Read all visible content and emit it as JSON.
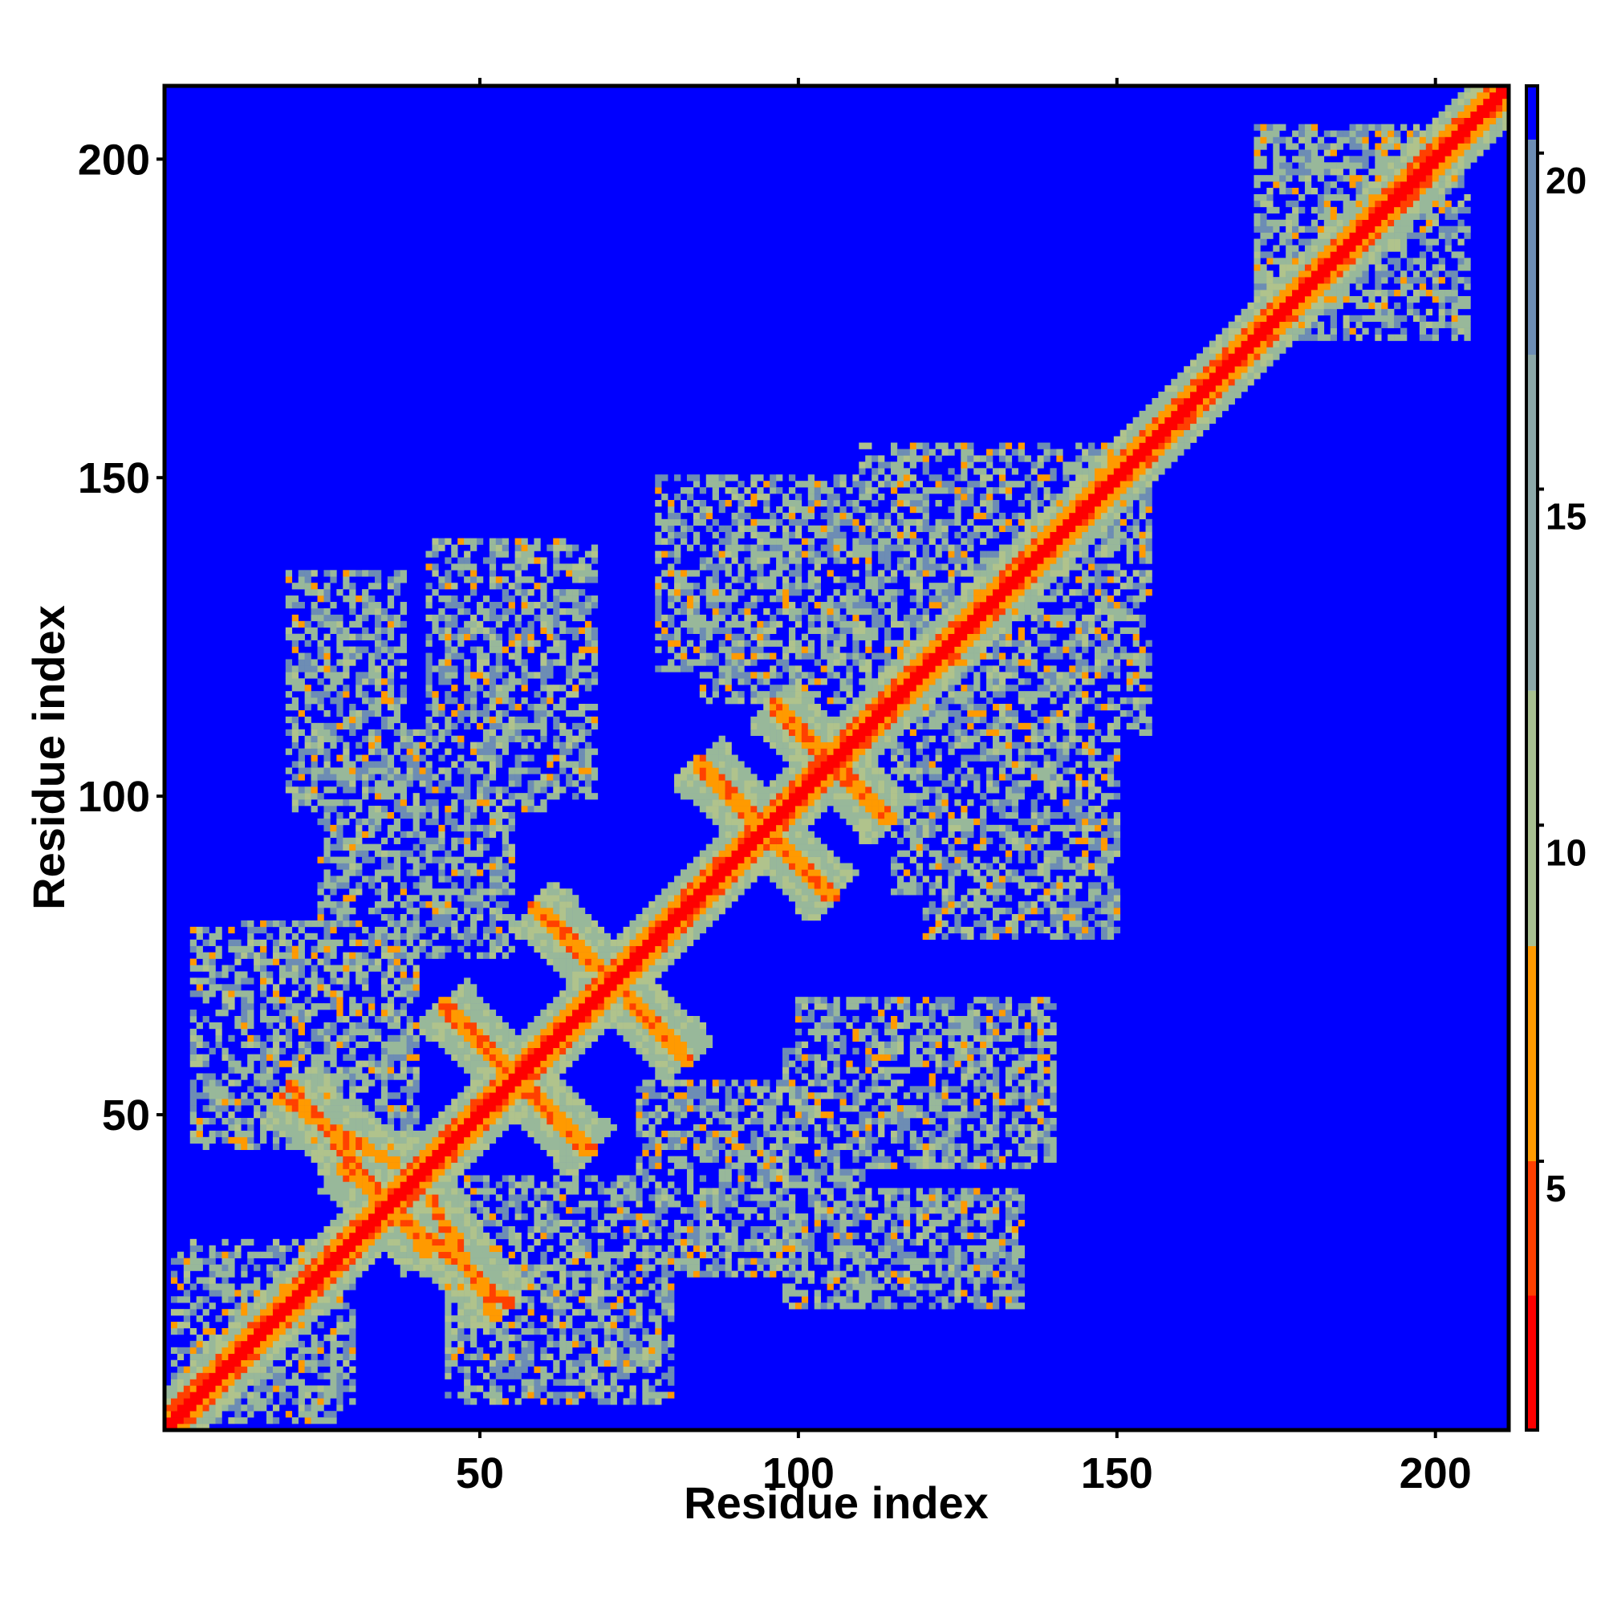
{
  "chart_data": {
    "type": "heatmap",
    "title": "",
    "xlabel": "Residue index",
    "ylabel": "Residue index",
    "xlim": [
      1,
      211
    ],
    "ylim": [
      1,
      211
    ],
    "x_ticks": [
      50,
      100,
      150,
      200
    ],
    "y_ticks": [
      50,
      100,
      150,
      200
    ],
    "x_tick_labels": [
      "50",
      "100",
      "150",
      "200"
    ],
    "y_tick_labels": [
      "50",
      "100",
      "150",
      "200"
    ],
    "colorbar": {
      "range": [
        1,
        21
      ],
      "ticks": [
        5,
        10,
        15,
        20
      ],
      "tick_labels": [
        "5",
        "10",
        "15",
        "20"
      ],
      "colors": [
        "#ff0000",
        "#ff8c00",
        "#a8c090",
        "#6f8fb0",
        "#0000ff"
      ]
    },
    "background_color": "#0000ff",
    "diagonal_band": {
      "from": 1,
      "to": 211
    },
    "features": [
      {
        "kind": "antidiagonal",
        "from": [
          20,
          55
        ],
        "to": [
          42,
          28
        ]
      },
      {
        "kind": "antidiagonal",
        "from": [
          44,
          67
        ],
        "to": [
          68,
          44
        ]
      },
      {
        "kind": "antidiagonal",
        "from": [
          58,
          83
        ],
        "to": [
          82,
          60
        ]
      },
      {
        "kind": "antidiagonal",
        "from": [
          42,
          37
        ],
        "to": [
          53,
          18
        ]
      },
      {
        "kind": "antidiagonal",
        "from": [
          84,
          105
        ],
        "to": [
          106,
          84
        ]
      },
      {
        "kind": "antidiagonal",
        "from": [
          96,
          115
        ],
        "to": [
          114,
          96
        ]
      },
      {
        "kind": "cluster",
        "x": [
          2,
          30
        ],
        "y": [
          5,
          28
        ]
      },
      {
        "kind": "cluster",
        "x": [
          10,
          40
        ],
        "y": [
          45,
          80
        ]
      },
      {
        "kind": "cluster",
        "x": [
          20,
          38
        ],
        "y": [
          98,
          135
        ]
      },
      {
        "kind": "cluster",
        "x": [
          42,
          60
        ],
        "y": [
          98,
          140
        ]
      },
      {
        "kind": "cluster",
        "x": [
          58,
          68
        ],
        "y": [
          100,
          118
        ]
      },
      {
        "kind": "cluster",
        "x": [
          45,
          80
        ],
        "y": [
          5,
          35
        ]
      },
      {
        "kind": "cluster",
        "x": [
          75,
          110
        ],
        "y": [
          25,
          55
        ]
      },
      {
        "kind": "cluster",
        "x": [
          100,
          135
        ],
        "y": [
          20,
          35
        ]
      },
      {
        "kind": "cluster",
        "x": [
          100,
          140
        ],
        "y": [
          45,
          68
        ]
      },
      {
        "kind": "cluster",
        "x": [
          78,
          118
        ],
        "y": [
          120,
          150
        ]
      },
      {
        "kind": "cluster",
        "x": [
          118,
          155
        ],
        "y": [
          110,
          150
        ]
      },
      {
        "kind": "cluster",
        "x": [
          115,
          150
        ],
        "y": [
          85,
          108
        ]
      },
      {
        "kind": "cluster",
        "x": [
          172,
          200
        ],
        "y": [
          175,
          205
        ]
      }
    ]
  }
}
